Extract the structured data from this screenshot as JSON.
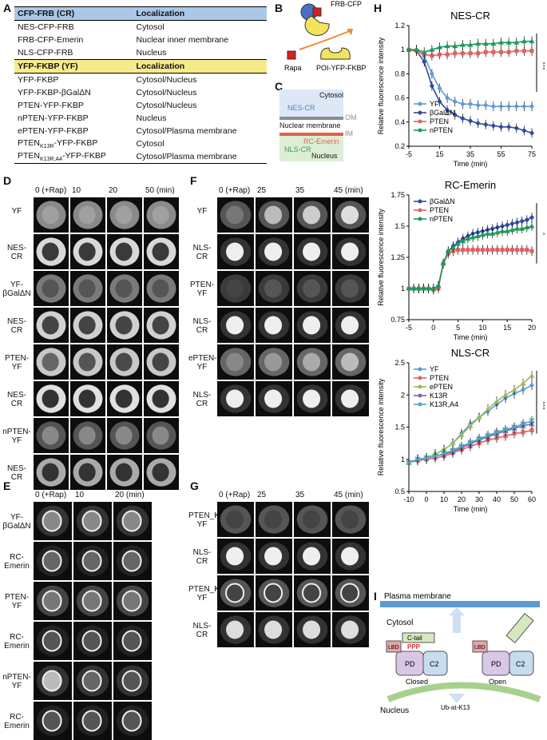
{
  "panels": {
    "A": "A",
    "B": "B",
    "C": "C",
    "D": "D",
    "E": "E",
    "F": "F",
    "G": "G",
    "H": "H",
    "I": "I"
  },
  "tableA": {
    "header1": [
      "CFP-FRB (CR)",
      "Localization"
    ],
    "rows1": [
      [
        "NES-CFP-FRB",
        "Cytosol"
      ],
      [
        "FRB-CFP-Emerin",
        "Nuclear inner membrane"
      ],
      [
        "NLS-CFP-FRB",
        "Nucleus"
      ]
    ],
    "header2": [
      "YFP-FKBP (YF)",
      "Localization"
    ],
    "rows2": [
      [
        "YFP-FKBP",
        "Cytosol/Nucleus"
      ],
      [
        "YFP-FKBP-βGalΔN",
        "Cytosol/Nucleus"
      ],
      [
        "PTEN-YFP-FKBP",
        "Cytosol/Nucleus"
      ],
      [
        "nPTEN-YFP-FKBP",
        "Nucleus"
      ],
      [
        "ePTEN-YFP-FKBP",
        "Cytosol/Plasma membrane"
      ]
    ],
    "k13r_pre": "PTEN",
    "k13r_sub": "K13R",
    "k13r_post": "-YFP-FKBP",
    "k13r_loc": "Cytosol",
    "k13ra4_pre": "PTEN",
    "k13ra4_sub": "K13R,A4",
    "k13ra4_post": "-YFP-FKBP",
    "k13ra4_loc": "Cytosol/Plasma membrane"
  },
  "panelB": {
    "frb": "FRB-CFP",
    "rapa": "Rapa",
    "poi": "POI-YFP-FKBP"
  },
  "panelC": {
    "cytosol": "Cytosol",
    "nescr": "NES-CR",
    "om": "OM",
    "nucmem": "Nuclear membrane",
    "im": "IM",
    "rcemerin": "RC-Emerin",
    "nlscr": "NLS-CR",
    "nucleus": "Nucleus"
  },
  "panelD": {
    "cols": [
      "0 (+Rap)",
      "10",
      "20",
      "50 (min)"
    ],
    "rows": [
      "YF",
      "NES-\nCR",
      "YF-\nβGalΔN",
      "NES-\nCR",
      "PTEN-\nYF",
      "NES-\nCR",
      "nPTEN-\nYF",
      "NES-\nCR"
    ]
  },
  "panelE": {
    "cols": [
      "0 (+Rap)",
      "10",
      "20 (min)"
    ],
    "rows": [
      "YF-\nβGalΔN",
      "RC-\nEmerin",
      "PTEN-\nYF",
      "RC-\nEmerin",
      "nPTEN-\nYF",
      "RC-\nEmerin"
    ]
  },
  "panelF": {
    "cols": [
      "0 (+Rap)",
      "25",
      "35",
      "45 (min)"
    ],
    "rows": [
      "YF",
      "NLS-\nCR",
      "PTEN-\nYF",
      "NLS-\nCR",
      "ePTEN-\nYF",
      "NLS-\nCR"
    ]
  },
  "panelG": {
    "cols": [
      "0 (+Rap)",
      "25",
      "35",
      "45 (min)"
    ],
    "rows": [
      "PTEN_K13R-\nYF",
      "NLS-\nCR",
      "PTEN_K13R,A4-\nYF",
      "NLS-\nCR"
    ]
  },
  "chart_data": [
    {
      "type": "line",
      "title": "NES-CR",
      "xlabel": "Time (min)",
      "ylabel": "Relative fluorescence intensity",
      "xlim": [
        -5,
        75
      ],
      "ylim": [
        0.2,
        1.2
      ],
      "xticks": [
        -5,
        15,
        35,
        55,
        75
      ],
      "yticks": [
        0.2,
        0.4,
        0.6,
        0.8,
        1,
        1.2
      ],
      "xticklabels": [
        "-5",
        "15",
        "35",
        "55",
        "75"
      ],
      "yticklabels": [
        "0.2",
        "0.4",
        "0.6",
        "0.8",
        "1",
        "1.2"
      ],
      "annotation": "***",
      "x": [
        -5,
        0,
        5,
        10,
        15,
        20,
        25,
        30,
        35,
        40,
        45,
        50,
        55,
        60,
        65,
        70,
        75
      ],
      "series": [
        {
          "name": "YF",
          "color": "#5b9bd5",
          "marker": "diamond",
          "values": [
            1,
            1,
            0.95,
            0.8,
            0.68,
            0.6,
            0.57,
            0.55,
            0.55,
            0.54,
            0.54,
            0.53,
            0.53,
            0.53,
            0.53,
            0.53,
            0.53
          ]
        },
        {
          "name": "βGalΔN",
          "color": "#2e4a9e",
          "marker": "diamond",
          "values": [
            1,
            0.99,
            0.9,
            0.7,
            0.57,
            0.5,
            0.46,
            0.43,
            0.41,
            0.39,
            0.38,
            0.37,
            0.36,
            0.36,
            0.35,
            0.33,
            0.31
          ]
        },
        {
          "name": "PTEN",
          "color": "#e06060",
          "marker": "square",
          "values": [
            1,
            0.99,
            0.96,
            0.95,
            0.96,
            0.96,
            0.97,
            0.97,
            0.97,
            0.97,
            0.98,
            0.98,
            0.98,
            0.98,
            0.99,
            0.99,
            0.99
          ]
        },
        {
          "name": "nPTEN",
          "color": "#1a9a5a",
          "marker": "triangle",
          "values": [
            1,
            1,
            0.98,
            1.0,
            1.02,
            1.03,
            1.03,
            1.04,
            1.04,
            1.05,
            1.05,
            1.05,
            1.06,
            1.06,
            1.06,
            1.07,
            1.07
          ]
        }
      ]
    },
    {
      "type": "line",
      "title": "RC-Emerin",
      "xlabel": "Time (min)",
      "ylabel": "Relative fluorescence intensity",
      "xlim": [
        -5,
        20
      ],
      "ylim": [
        0.75,
        1.75
      ],
      "xticks": [
        -5,
        0,
        5,
        10,
        15,
        20
      ],
      "yticks": [
        0.75,
        1,
        1.25,
        1.5,
        1.75
      ],
      "xticklabels": [
        "-5",
        "0",
        "5",
        "10",
        "15",
        "20"
      ],
      "yticklabels": [
        "0.75",
        "1",
        "1.25",
        "1.5",
        "1.75"
      ],
      "annotation": "*",
      "x": [
        -5,
        -4,
        -3,
        -2,
        -1,
        0,
        1,
        2,
        3,
        4,
        5,
        6,
        7,
        8,
        9,
        10,
        11,
        12,
        13,
        14,
        15,
        16,
        17,
        18,
        19,
        20
      ],
      "series": [
        {
          "name": "βGalΔN",
          "color": "#2e4a9e",
          "marker": "diamond",
          "values": [
            1,
            1,
            1,
            1,
            1,
            1,
            1.02,
            1.2,
            1.3,
            1.34,
            1.37,
            1.4,
            1.42,
            1.44,
            1.45,
            1.46,
            1.47,
            1.48,
            1.49,
            1.5,
            1.51,
            1.52,
            1.53,
            1.54,
            1.55,
            1.57
          ]
        },
        {
          "name": "PTEN",
          "color": "#e06060",
          "marker": "square",
          "values": [
            1,
            1,
            1,
            1,
            1,
            0.99,
            1.0,
            1.2,
            1.28,
            1.3,
            1.31,
            1.31,
            1.31,
            1.31,
            1.31,
            1.31,
            1.31,
            1.31,
            1.31,
            1.31,
            1.31,
            1.31,
            1.31,
            1.31,
            1.31,
            1.3
          ]
        },
        {
          "name": "nPTEN",
          "color": "#1a9a5a",
          "marker": "triangle",
          "values": [
            1,
            1,
            1,
            1,
            1,
            1,
            1.02,
            1.2,
            1.3,
            1.33,
            1.36,
            1.38,
            1.4,
            1.41,
            1.42,
            1.43,
            1.44,
            1.44,
            1.45,
            1.46,
            1.46,
            1.47,
            1.48,
            1.48,
            1.49,
            1.5
          ]
        }
      ]
    },
    {
      "type": "line",
      "title": "NLS-CR",
      "xlabel": "Time (min)",
      "ylabel": "Relative fluorescence intensity",
      "xlim": [
        -10,
        60
      ],
      "ylim": [
        0.5,
        2.5
      ],
      "xticks": [
        -10,
        0,
        10,
        20,
        30,
        40,
        50,
        60
      ],
      "yticks": [
        0.5,
        1,
        1.5,
        2,
        2.5
      ],
      "xticklabels": [
        "-10",
        "0",
        "10",
        "20",
        "30",
        "40",
        "50",
        "60"
      ],
      "yticklabels": [
        "0.5",
        "1",
        "1.5",
        "2",
        "2.5"
      ],
      "annotation": "***",
      "x": [
        -10,
        -5,
        0,
        5,
        10,
        15,
        20,
        25,
        30,
        35,
        40,
        45,
        50,
        55,
        60
      ],
      "series": [
        {
          "name": "YF",
          "color": "#5b9bd5",
          "marker": "diamond",
          "values": [
            0.95,
            1,
            1.02,
            1.08,
            1.15,
            1.25,
            1.4,
            1.55,
            1.65,
            1.75,
            1.85,
            1.95,
            2.02,
            2.08,
            2.15
          ]
        },
        {
          "name": "PTEN",
          "color": "#e06060",
          "marker": "square",
          "values": [
            0.95,
            0.98,
            1.0,
            1.02,
            1.05,
            1.1,
            1.15,
            1.2,
            1.25,
            1.3,
            1.33,
            1.36,
            1.4,
            1.42,
            1.45
          ]
        },
        {
          "name": "ePTEN",
          "color": "#9bbb59",
          "marker": "triangle",
          "values": [
            0.95,
            1,
            1.02,
            1.08,
            1.15,
            1.25,
            1.38,
            1.52,
            1.65,
            1.78,
            1.9,
            2.0,
            2.08,
            2.18,
            2.3
          ]
        },
        {
          "name": "K13R",
          "color": "#8064a2",
          "marker": "x",
          "values": [
            0.95,
            1,
            1.02,
            1.05,
            1.08,
            1.12,
            1.18,
            1.24,
            1.3,
            1.35,
            1.4,
            1.44,
            1.48,
            1.52,
            1.55
          ]
        },
        {
          "name": "K13R,A4",
          "color": "#4bacc6",
          "marker": "x",
          "values": [
            0.95,
            1,
            1.02,
            1.05,
            1.09,
            1.14,
            1.2,
            1.26,
            1.32,
            1.37,
            1.42,
            1.46,
            1.5,
            1.55,
            1.6
          ]
        }
      ]
    }
  ],
  "panelI": {
    "pm": "Plasma membrane",
    "cytosol": "Cytosol",
    "lbd": "LBD",
    "ctail": "C-tail",
    "ppp": "PPP",
    "pd": "PD",
    "c2": "C2",
    "closed": "Closed",
    "open": "Open",
    "nucleus": "Nucleus",
    "ub": "Ub-at-K13"
  },
  "colors": {
    "nescr": "#4f7fc7",
    "om": "#8c8c8c",
    "im": "#e06050",
    "nlscr": "#3a9a4a"
  }
}
